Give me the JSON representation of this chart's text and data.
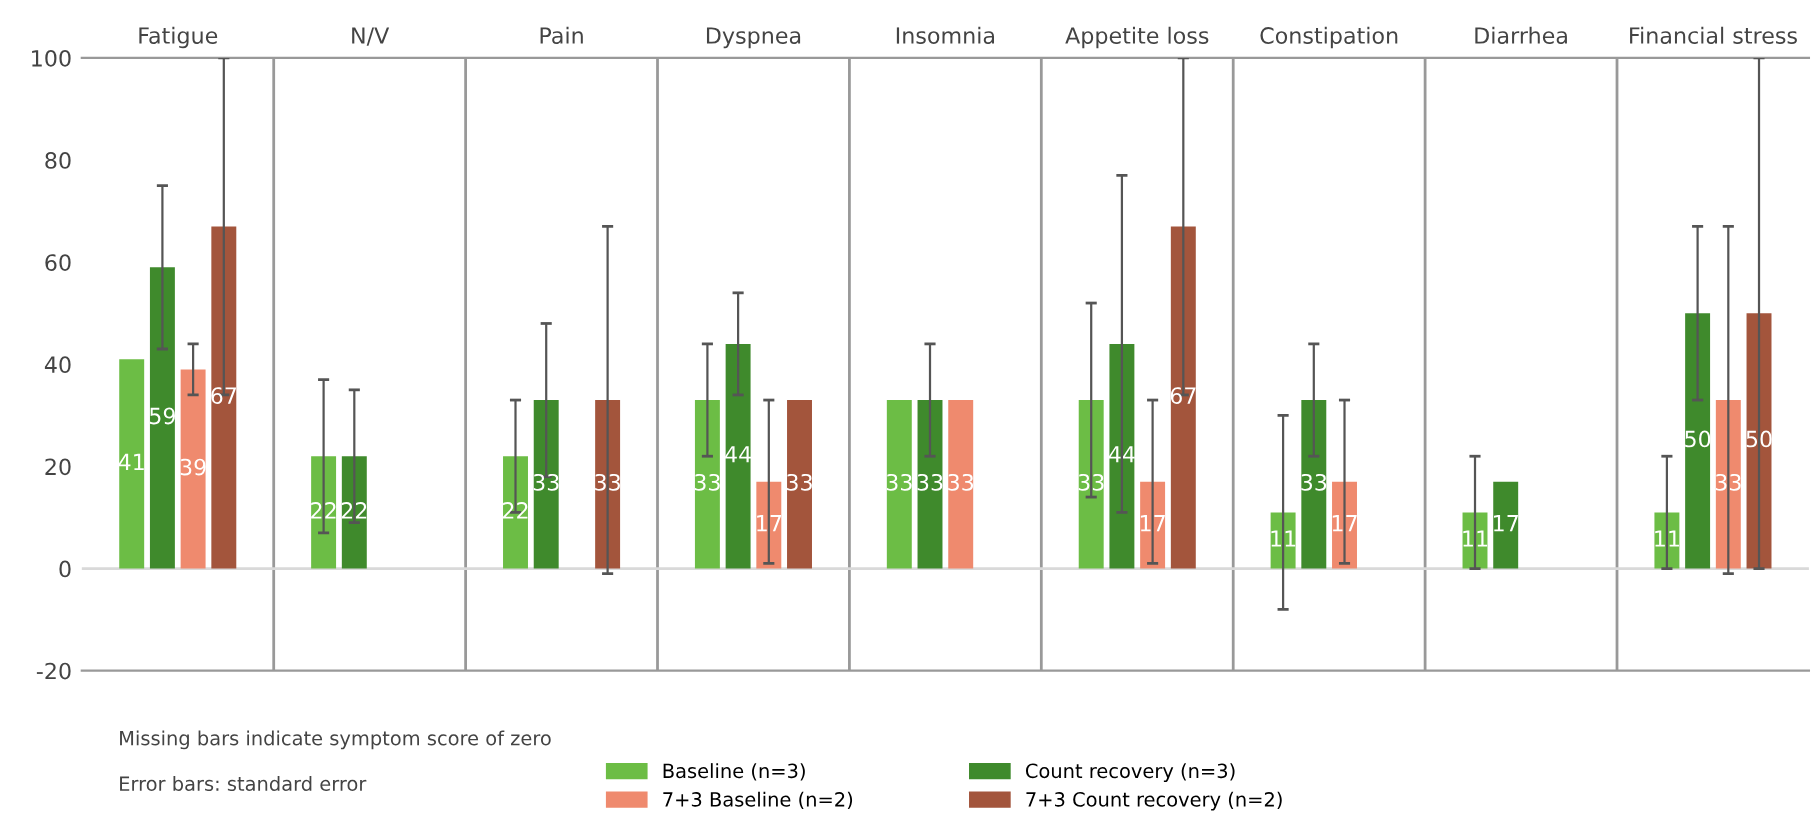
{
  "chart_data": {
    "type": "bar",
    "categories": [
      "Fatigue",
      "N/V",
      "Pain",
      "Dyspnea",
      "Insomnia",
      "Appetite loss",
      "Constipation",
      "Diarrhea",
      "Financial stress"
    ],
    "series": [
      {
        "name": "Baseline (n=3)",
        "color": "#6cbd45",
        "values": [
          41,
          22,
          22,
          33,
          33,
          33,
          11,
          11,
          11
        ],
        "errors": [
          null,
          15,
          11,
          11,
          null,
          19,
          19,
          11,
          11
        ]
      },
      {
        "name": "Count recovery (n=3)",
        "color": "#3f8a2c",
        "values": [
          59,
          22,
          33,
          44,
          33,
          44,
          33,
          17,
          50
        ],
        "errors": [
          16,
          13,
          15,
          10,
          11,
          33,
          11,
          null,
          17
        ]
      },
      {
        "name": "7+3 Baseline (n=2)",
        "color": "#ef8a6e",
        "values": [
          39,
          null,
          null,
          17,
          33,
          17,
          17,
          null,
          33
        ],
        "errors": [
          5,
          null,
          null,
          16,
          null,
          16,
          16,
          null,
          34
        ]
      },
      {
        "name": "7+3 Count recovery (n=2)",
        "color": "#a3553c",
        "values": [
          67,
          null,
          33,
          33,
          null,
          67,
          null,
          null,
          50
        ],
        "errors": [
          33,
          null,
          34,
          null,
          null,
          33,
          null,
          null,
          50
        ]
      }
    ],
    "ylim": [
      -20,
      100
    ],
    "yticks": [
      -20,
      0,
      20,
      40,
      60,
      80,
      100
    ],
    "grid": "x",
    "legend": "bottom",
    "data_labels": true,
    "ref_lines": [
      {
        "axis": "y",
        "value": 0,
        "color": "#d9d9d9"
      }
    ],
    "annotations": [
      "Missing bars indicate symptom score of zero",
      "Error bars: standard error"
    ]
  }
}
